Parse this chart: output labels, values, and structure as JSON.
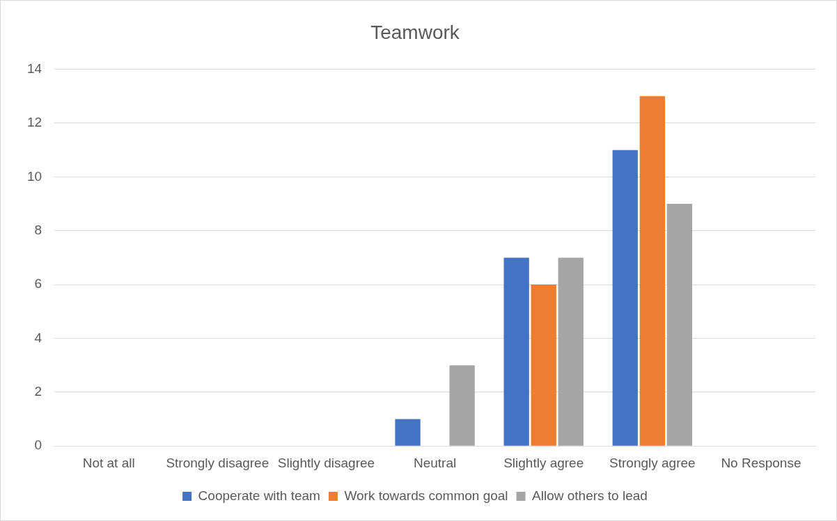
{
  "chart_data": {
    "type": "bar",
    "title": "Teamwork",
    "categories": [
      "Not at all",
      "Strongly disagree",
      "Slightly disagree",
      "Neutral",
      "Slightly agree",
      "Strongly agree",
      "No Response"
    ],
    "series": [
      {
        "name": "Cooperate with team",
        "color": "#4472c4",
        "values": [
          0,
          0,
          0,
          1,
          7,
          11,
          0
        ]
      },
      {
        "name": "Work towards common goal",
        "color": "#ed7d31",
        "values": [
          0,
          0,
          0,
          0,
          6,
          13,
          0
        ]
      },
      {
        "name": "Allow others to lead",
        "color": "#a5a5a5",
        "values": [
          0,
          0,
          0,
          3,
          7,
          9,
          0
        ]
      }
    ],
    "ylim": [
      0,
      14
    ],
    "yticks": [
      0,
      2,
      4,
      6,
      8,
      10,
      12,
      14
    ],
    "grid": "y",
    "legend": "bottom"
  }
}
